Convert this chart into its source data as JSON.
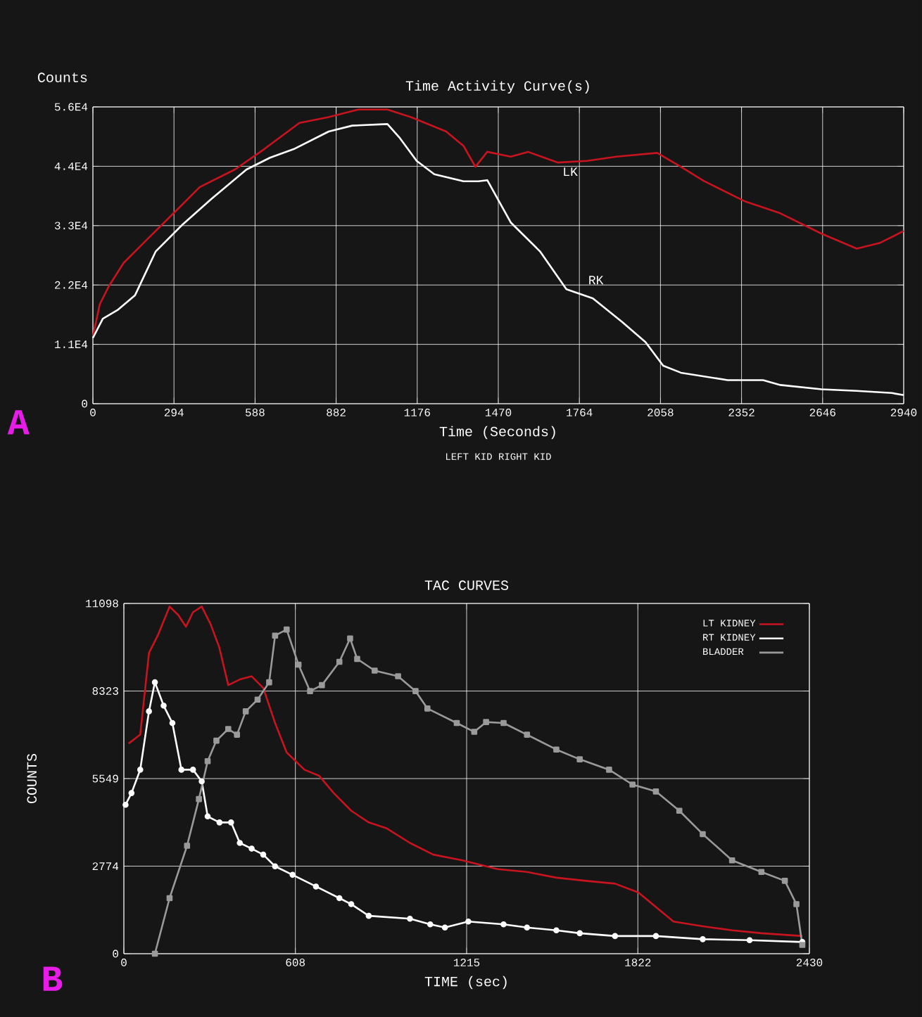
{
  "chart_data": [
    {
      "type": "line",
      "title": "Time Activity Curve(s)",
      "xlabel": "Time (Seconds)",
      "ylabel": "Counts",
      "xlim": [
        0,
        2940
      ],
      "xticks": [
        0,
        294,
        588,
        882,
        1176,
        1470,
        1764,
        2058,
        2352,
        2646,
        2940
      ],
      "ylim": [
        0,
        55500
      ],
      "yticks": [
        {
          "value": 0,
          "label": "0"
        },
        {
          "value": 11100,
          "label": "1.1E4"
        },
        {
          "value": 22200,
          "label": "2.2E4"
        },
        {
          "value": 33300,
          "label": "3.3E4"
        },
        {
          "value": 44400,
          "label": "4.4E4"
        },
        {
          "value": 55500,
          "label": "5.6E4"
        }
      ],
      "grid": true,
      "series": [
        {
          "name": "LK",
          "color": "#c8141e",
          "x": [
            0,
            25,
            57,
            111,
            196,
            302,
            387,
            515,
            621,
            749,
            855,
            962,
            1068,
            1153,
            1281,
            1344,
            1387,
            1430,
            1515,
            1578,
            1685,
            1791,
            1898,
            2046,
            2132,
            2217,
            2366,
            2493,
            2642,
            2770,
            2855,
            2940
          ],
          "values": [
            12600,
            18600,
            21900,
            26300,
            30700,
            36100,
            40500,
            43800,
            47600,
            52500,
            53600,
            55000,
            55000,
            53600,
            50900,
            48200,
            44300,
            47100,
            46200,
            47100,
            45100,
            45400,
            46200,
            46900,
            44300,
            41600,
            37800,
            35600,
            31800,
            29000,
            30100,
            32300
          ]
        },
        {
          "name": "RK",
          "color": "#ffffff",
          "x": [
            0,
            36,
            89,
            153,
            228,
            323,
            430,
            557,
            642,
            728,
            855,
            940,
            1068,
            1111,
            1174,
            1238,
            1344,
            1398,
            1430,
            1515,
            1621,
            1717,
            1813,
            1919,
            2004,
            2068,
            2132,
            2302,
            2430,
            2493,
            2642,
            2770,
            2897,
            2940
          ],
          "values": [
            12300,
            15900,
            17500,
            20300,
            28500,
            33400,
            38300,
            43800,
            46000,
            47600,
            50900,
            52000,
            52300,
            49800,
            45400,
            42900,
            41600,
            41600,
            41800,
            33900,
            28500,
            21400,
            19700,
            15300,
            11500,
            7100,
            5800,
            4400,
            4400,
            3500,
            2700,
            2400,
            2000,
            1600
          ]
        }
      ],
      "annotations": [
        "A",
        "LEFT KID    RIGHT KID"
      ]
    },
    {
      "type": "line",
      "title": "TAC CURVES",
      "xlabel": "TIME (sec)",
      "ylabel": "COUNTS",
      "xlim": [
        0,
        2430
      ],
      "xticks": [
        0,
        608,
        1215,
        1822,
        2430
      ],
      "ylim": [
        0,
        11098
      ],
      "yticks": [
        0,
        2774,
        5549,
        8323,
        11098
      ],
      "grid": true,
      "legend": "top right",
      "series": [
        {
          "name": "LT KIDNEY",
          "color": "#c8141e",
          "marker": "none",
          "x": [
            17,
            58,
            89,
            120,
            162,
            193,
            220,
            245,
            276,
            307,
            338,
            370,
            411,
            453,
            494,
            536,
            577,
            640,
            692,
            744,
            806,
            868,
            930,
            1014,
            1097,
            1200,
            1325,
            1429,
            1533,
            1637,
            1741,
            1824,
            1886,
            1948,
            2052,
            2156,
            2260,
            2405
          ],
          "values": [
            6660,
            6940,
            9530,
            10080,
            11000,
            10730,
            10360,
            10820,
            11000,
            10450,
            9710,
            8510,
            8690,
            8790,
            8420,
            7310,
            6380,
            5830,
            5640,
            5090,
            4530,
            4160,
            3980,
            3510,
            3140,
            2960,
            2680,
            2590,
            2410,
            2310,
            2220,
            1940,
            1480,
            1020,
            870,
            740,
            650,
            560
          ]
        },
        {
          "name": "RT KIDNEY",
          "color": "#ffffff",
          "marker": "circle",
          "x": [
            6,
            27,
            58,
            89,
            110,
            141,
            172,
            204,
            245,
            276,
            297,
            339,
            380,
            411,
            453,
            494,
            536,
            598,
            681,
            764,
            806,
            868,
            1014,
            1086,
            1138,
            1221,
            1346,
            1429,
            1533,
            1616,
            1741,
            1886,
            2052,
            2218,
            2405
          ],
          "values": [
            4720,
            5090,
            5830,
            7680,
            8600,
            7860,
            7310,
            5830,
            5830,
            5460,
            4350,
            4160,
            4160,
            3510,
            3330,
            3140,
            2770,
            2500,
            2130,
            1760,
            1570,
            1200,
            1110,
            930,
            830,
            1020,
            930,
            830,
            740,
            650,
            560,
            560,
            460,
            430,
            370
          ]
        },
        {
          "name": "BLADDER",
          "color": "#9a9a9a",
          "marker": "square",
          "x": [
            110,
            162,
            224,
            266,
            297,
            328,
            370,
            401,
            432,
            474,
            515,
            536,
            577,
            619,
            660,
            702,
            764,
            802,
            827,
            889,
            972,
            1034,
            1076,
            1180,
            1242,
            1284,
            1346,
            1429,
            1533,
            1616,
            1720,
            1803,
            1886,
            1969,
            2052,
            2156,
            2260,
            2343,
            2384,
            2405
          ],
          "values": [
            0,
            1760,
            3420,
            4900,
            6100,
            6750,
            7120,
            6940,
            7680,
            8050,
            8600,
            10080,
            10270,
            9160,
            8320,
            8510,
            9250,
            9990,
            9340,
            8970,
            8790,
            8320,
            7770,
            7310,
            7030,
            7340,
            7310,
            6940,
            6470,
            6160,
            5830,
            5360,
            5140,
            4530,
            3790,
            2960,
            2590,
            2310,
            1570,
            280
          ]
        }
      ],
      "annotations": [
        "B"
      ]
    }
  ]
}
